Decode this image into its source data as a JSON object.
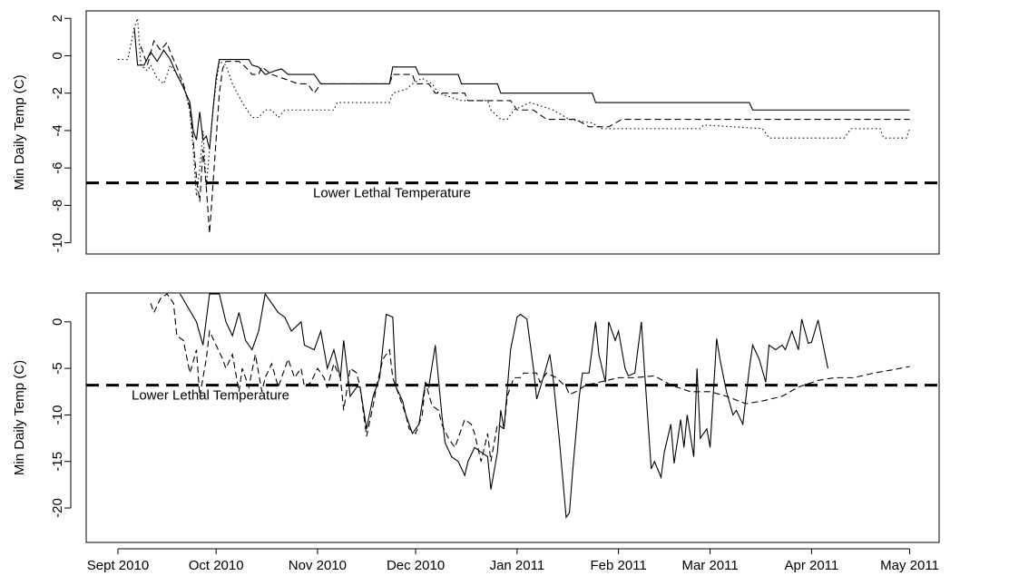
{
  "chart_data": [
    {
      "type": "line",
      "y_label": "Min Daily Temp (C)",
      "xlim": [
        -9.7,
        251
      ],
      "ylim": [
        -10.6,
        2.4
      ],
      "yticks": [
        2,
        0,
        -2,
        -4,
        -6,
        -8,
        -10
      ],
      "threshold": {
        "value": -6.8,
        "label": "Lower Lethal Temperature"
      },
      "series": [
        {
          "color": "#000",
          "dash": "solid",
          "x": [
            5,
            6,
            8,
            10,
            12,
            14,
            16,
            18,
            20,
            22,
            23,
            24,
            25,
            26,
            27,
            28,
            29,
            30,
            31,
            40,
            41,
            43,
            45,
            48,
            50,
            52,
            60,
            62,
            83,
            84,
            91,
            92,
            104,
            105,
            116,
            117,
            145,
            146,
            193,
            194,
            242
          ],
          "values": [
            1.5,
            -0.5,
            -0.5,
            0.2,
            -0.3,
            0.3,
            -0.2,
            -1,
            -1.7,
            -2.5,
            -4,
            -4.5,
            -3,
            -4.5,
            -4.3,
            -5,
            -3,
            -1.2,
            -0.2,
            -0.2,
            -0.5,
            -0.6,
            -1,
            -0.8,
            -0.7,
            -1,
            -1,
            -1.5,
            -1.5,
            -0.6,
            -0.6,
            -1,
            -1,
            -1.5,
            -1.5,
            -2,
            -2,
            -2.5,
            -2.5,
            -2.9,
            -2.9
          ]
        },
        {
          "color": "#000",
          "dash": "dashed",
          "x": [
            7,
            9,
            11,
            13,
            15,
            16,
            18,
            20,
            22,
            23,
            24,
            25,
            26,
            27,
            28,
            29,
            30,
            31,
            32,
            33,
            37,
            39,
            41,
            43,
            44,
            47,
            52,
            55,
            58,
            60,
            62,
            83,
            84,
            90,
            91,
            95,
            97,
            106,
            107,
            120,
            122,
            127,
            131,
            140,
            144,
            150,
            154,
            242
          ],
          "values": [
            0.5,
            -0.5,
            0.8,
            0.3,
            0.7,
            0.2,
            -0.6,
            -1.5,
            -2.8,
            -4.5,
            -6.5,
            -7.8,
            -5,
            -7,
            -9.5,
            -7,
            -4.5,
            -2,
            -0.7,
            -0.3,
            -0.3,
            -0.6,
            -1,
            -1,
            -0.6,
            -1,
            -1.3,
            -1.5,
            -1.5,
            -2,
            -1.5,
            -1.5,
            -1,
            -1,
            -1.5,
            -1.5,
            -2,
            -2,
            -2.4,
            -2.4,
            -2.9,
            -2.9,
            -3.4,
            -3.4,
            -3.8,
            -3.8,
            -3.4,
            -3.4
          ]
        },
        {
          "color": "#000",
          "dash": "dotted",
          "x": [
            0,
            3,
            5,
            6,
            7,
            9,
            10,
            12,
            14,
            16,
            18,
            20,
            22,
            23,
            24,
            25,
            26,
            27,
            28,
            29,
            30,
            31,
            33,
            35,
            38,
            41,
            43,
            45,
            47,
            49,
            51,
            55,
            66,
            67,
            83,
            84,
            88,
            90,
            93,
            96,
            98,
            105,
            113,
            114,
            117,
            119,
            121,
            126,
            133,
            138,
            145,
            148,
            178,
            179,
            197,
            199,
            222,
            224,
            233,
            234,
            241,
            242
          ],
          "values": [
            -0.2,
            -0.2,
            1.5,
            2,
            -0.5,
            -0.8,
            -0.5,
            -1.2,
            -1.5,
            -0.5,
            -1,
            -1.5,
            -3,
            -5,
            -7.5,
            -6,
            -4,
            -7,
            -5,
            -3,
            -1.5,
            -0.3,
            -0.5,
            -1.5,
            -2.5,
            -3.3,
            -3.3,
            -2.9,
            -2.9,
            -3.3,
            -2.9,
            -2.9,
            -2.9,
            -2.5,
            -2.5,
            -2,
            -1.8,
            -1.5,
            -1.2,
            -1.5,
            -2,
            -2.4,
            -2.4,
            -2.9,
            -3.4,
            -3.4,
            -2.9,
            -2.5,
            -2.9,
            -3.4,
            -3.6,
            -3.9,
            -3.9,
            -3.7,
            -3.9,
            -4.4,
            -4.4,
            -3.9,
            -3.9,
            -4.4,
            -4.4,
            -3.9
          ]
        }
      ]
    },
    {
      "type": "line",
      "y_label": "Min Daily Temp (C)",
      "xlim": [
        -9.7,
        251
      ],
      "ylim": [
        -23.7,
        3.1
      ],
      "yticks": [
        0,
        -5,
        -10,
        -15,
        -20
      ],
      "xticks": [
        {
          "value": 0,
          "label": "Sept 2010"
        },
        {
          "value": 30,
          "label": "Oct 2010"
        },
        {
          "value": 61,
          "label": "Nov 2010"
        },
        {
          "value": 91,
          "label": "Dec 2010"
        },
        {
          "value": 122,
          "label": "Jan 2011"
        },
        {
          "value": 153,
          "label": "Feb 2011"
        },
        {
          "value": 181,
          "label": "Mar 2011"
        },
        {
          "value": 212,
          "label": "Apr 2011"
        },
        {
          "value": 242,
          "label": "May 2011"
        }
      ],
      "threshold": {
        "value": -6.8,
        "label": "Lower Lethal Temperature"
      },
      "series": [
        {
          "color": "#000",
          "dash": "solid",
          "x": [
            19,
            24,
            26,
            28,
            31,
            33,
            35,
            37,
            39,
            41,
            43,
            45,
            47,
            49,
            51,
            53,
            56,
            57,
            60,
            62,
            64,
            66,
            68,
            69,
            71,
            73,
            74,
            76,
            78,
            80,
            82,
            84,
            85,
            87,
            88,
            90,
            92,
            94,
            95,
            97,
            99,
            100,
            102,
            104,
            106,
            107,
            109,
            111,
            113,
            114,
            116,
            117,
            118,
            120,
            122,
            123,
            125,
            127,
            128,
            130,
            132,
            133,
            135,
            137,
            138,
            139,
            141,
            142,
            144,
            146,
            147,
            149,
            150,
            152,
            153,
            155,
            156,
            158,
            160,
            161,
            163,
            164,
            166,
            167,
            169,
            170,
            172,
            173,
            174,
            176,
            177,
            178,
            180,
            181,
            183,
            184,
            186,
            188,
            189,
            191,
            193,
            194,
            196,
            198,
            199,
            201,
            203,
            204,
            206,
            208,
            209,
            211,
            212,
            214,
            217
          ],
          "values": [
            3,
            0,
            -2.5,
            3,
            3,
            0,
            -1.5,
            1,
            -2,
            -3,
            -1,
            3,
            2,
            1,
            0.5,
            -1,
            0,
            -2.5,
            -3,
            -1,
            -5,
            -3,
            -6,
            -2,
            -8,
            -7,
            -7,
            -11.5,
            -8,
            -6,
            0.8,
            0.5,
            -7,
            -8.5,
            -10,
            -12,
            -11,
            -6.5,
            -7,
            -2.5,
            -10,
            -13,
            -14.5,
            -15,
            -16.5,
            -15,
            -13.5,
            -14,
            -14.5,
            -18,
            -14,
            -9.5,
            -11.5,
            -3,
            0.5,
            0.8,
            0.3,
            -5,
            -8.3,
            -6,
            -3.5,
            -6,
            -13,
            -21,
            -20.5,
            -16,
            -8,
            -5.5,
            -5.5,
            0,
            -3.5,
            -6.5,
            0,
            -2,
            -1,
            -5,
            -5.8,
            -5.5,
            0,
            -5.5,
            -15.8,
            -15,
            -16.7,
            -14,
            -11,
            -15.2,
            -10.5,
            -13.5,
            -10,
            -14.5,
            -5,
            -12.5,
            -11.5,
            -13.5,
            -1.8,
            -4,
            -7.5,
            -10,
            -9.5,
            -11,
            -5,
            -2.5,
            -4,
            -6.5,
            -2.5,
            -3,
            -2.5,
            -3,
            -1,
            -3,
            0.3,
            -2.3,
            -2.2,
            0.2,
            -5
          ]
        },
        {
          "color": "#000",
          "dash": "dashed",
          "x": [
            10,
            11,
            13,
            15,
            17,
            18,
            20,
            22,
            24,
            25,
            27,
            28,
            30,
            32,
            33,
            35,
            37,
            38,
            40,
            42,
            44,
            45,
            47,
            49,
            51,
            52,
            54,
            56,
            57,
            59,
            61,
            63,
            64,
            66,
            68,
            69,
            71,
            73,
            74,
            76,
            78,
            79,
            81,
            83,
            84,
            86,
            88,
            89,
            91,
            93,
            94,
            96,
            98,
            99,
            101,
            103,
            104,
            106,
            108,
            109,
            111,
            113,
            114,
            116,
            118,
            119,
            121,
            123,
            124,
            128,
            129,
            131,
            134,
            137,
            138,
            140,
            143,
            147,
            153,
            158,
            164,
            169,
            175,
            181,
            186,
            192,
            197,
            203,
            208,
            214,
            219,
            225,
            231,
            236,
            242
          ],
          "values": [
            2,
            1,
            2.5,
            3,
            2,
            -1.5,
            -2,
            -5.5,
            -3,
            -8,
            -4,
            -1,
            -2.5,
            -4,
            -5,
            -3.5,
            -7.5,
            -5,
            -7,
            -3.5,
            -7.5,
            -6,
            -4.5,
            -7,
            -5,
            -4,
            -6,
            -5,
            -7,
            -6.5,
            -5,
            -6,
            -7,
            -4.5,
            -6,
            -9.5,
            -5,
            -5.5,
            -7,
            -12.3,
            -9,
            -7,
            -4,
            -3,
            -6,
            -8,
            -10,
            -11.5,
            -12,
            -10,
            -6.5,
            -9,
            -9.5,
            -11,
            -12.5,
            -13.5,
            -12.5,
            -10.5,
            -11,
            -12,
            -15,
            -12,
            -15,
            -11,
            -11.5,
            -8,
            -6,
            -6,
            -5.5,
            -5.5,
            -6.5,
            -5.5,
            -6,
            -7,
            -7.8,
            -7.5,
            -6.8,
            -6.5,
            -6,
            -6,
            -5.8,
            -6.8,
            -7.5,
            -7.5,
            -8,
            -8.8,
            -8.5,
            -8,
            -7,
            -6.3,
            -6,
            -6,
            -5.5,
            -5.2,
            -4.8
          ]
        }
      ]
    }
  ]
}
